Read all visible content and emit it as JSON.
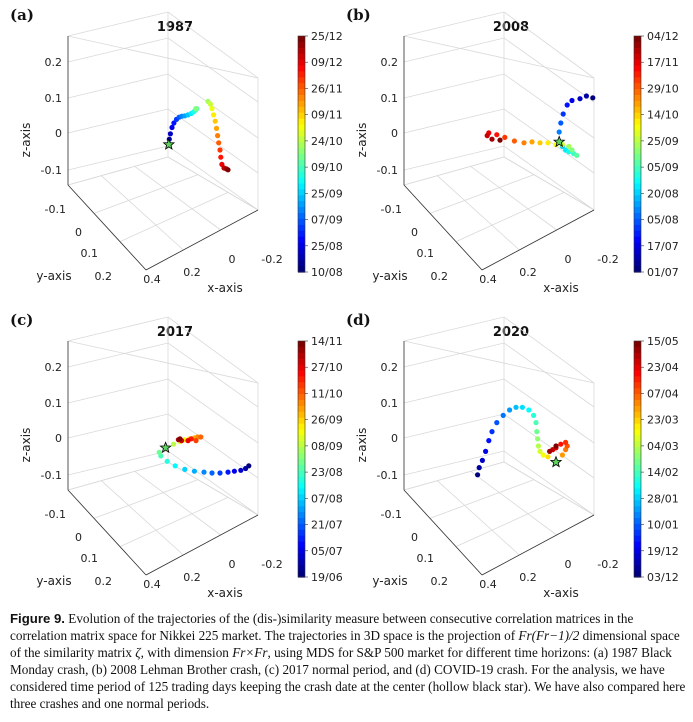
{
  "figure": {
    "label": "Figure 9.",
    "caption_parts": [
      "Evolution of the trajectories of the (dis-)similarity measure between consecutive correlation matrices in the correlation matrix space for Nikkei 225 market. The trajectories in 3D space is the projection of ",
      "Fr(Fr−1)/2",
      " dimensional space of the similarity matrix ",
      "ζ",
      ", with dimension ",
      "Fr×Fr",
      ", using MDS for S&P 500 market for different time horizons: (a) 1987 Black Monday crash, (b) 2008 Lehman Brother crash, (c) 2017 normal period, and (d) COVID-19 crash. For the analysis, we have considered time period of 125 trading days keeping the crash date at the center (hollow black star). We have also compared here three crashes and one normal periods."
    ]
  },
  "colors": {
    "jet": [
      "#00007f",
      "#0000ff",
      "#007fff",
      "#00ffff",
      "#7fff7f",
      "#ffff00",
      "#ff7f00",
      "#ff0000",
      "#7f0000"
    ],
    "star_fill": "#5fd35f",
    "axis": "#333333",
    "grid": "#d9d9d9"
  },
  "chart_data": [
    {
      "panel": "(a)",
      "title": "1987",
      "type": "scatter3d",
      "xlabel": "x-axis",
      "ylabel": "y-axis",
      "zlabel": "z-axis",
      "x_ticks": [
        "0.4",
        "0.2",
        "0",
        "-0.2"
      ],
      "y_ticks": [
        "-0.1",
        "0",
        "0.1",
        "0.2"
      ],
      "z_ticks": [
        "0.2",
        "0.1",
        "0",
        "-0.1"
      ],
      "colorbar_ticks": [
        "25/12",
        "09/12",
        "26/11",
        "09/11",
        "24/10",
        "09/10",
        "25/09",
        "07/09",
        "25/08",
        "10/08"
      ],
      "crash_index": 0,
      "trajectory": [
        [
          0.38,
          0.47
        ],
        [
          0.383,
          0.44
        ],
        [
          0.39,
          0.41
        ],
        [
          0.4,
          0.375
        ],
        [
          0.412,
          0.35
        ],
        [
          0.428,
          0.33
        ],
        [
          0.445,
          0.318
        ],
        [
          0.462,
          0.312
        ],
        [
          0.48,
          0.31
        ],
        [
          0.5,
          0.305
        ],
        [
          0.52,
          0.297
        ],
        [
          0.535,
          0.288
        ],
        [
          0.548,
          0.278
        ],
        [
          0.555,
          0.27
        ],
        [
          0.548,
          0.27
        ],
        [
          0.625,
          0.23
        ],
        [
          0.64,
          0.245
        ],
        [
          0.65,
          0.27
        ],
        [
          0.66,
          0.305
        ],
        [
          0.67,
          0.34
        ],
        [
          0.678,
          0.38
        ],
        [
          0.685,
          0.42
        ],
        [
          0.692,
          0.46
        ],
        [
          0.7,
          0.5
        ],
        [
          0.705,
          0.54
        ],
        [
          0.712,
          0.58
        ],
        [
          0.725,
          0.6
        ],
        [
          0.74,
          0.605
        ],
        [
          0.75,
          0.61
        ]
      ]
    },
    {
      "panel": "(b)",
      "title": "2008",
      "type": "scatter3d",
      "xlabel": "x-axis",
      "ylabel": "y-axis",
      "zlabel": "z-axis",
      "x_ticks": [
        "0.4",
        "0.2",
        "0",
        "-0.2"
      ],
      "y_ticks": [
        "-0.1",
        "0",
        "0.1",
        "0.2"
      ],
      "z_ticks": [
        "0.2",
        "0.1",
        "0",
        "-0.1"
      ],
      "colorbar_ticks": [
        "04/12",
        "17/11",
        "29/10",
        "14/10",
        "25/09",
        "05/09",
        "20/08",
        "05/08",
        "17/07",
        "01/07"
      ],
      "crash_index": 8,
      "trajectory": [
        [
          0.93,
          0.21
        ],
        [
          0.89,
          0.2
        ],
        [
          0.85,
          0.215
        ],
        [
          0.8,
          0.225
        ],
        [
          0.77,
          0.25
        ],
        [
          0.745,
          0.3
        ],
        [
          0.73,
          0.35
        ],
        [
          0.72,
          0.4
        ],
        [
          0.72,
          0.455
        ],
        [
          0.74,
          0.48
        ],
        [
          0.76,
          0.5
        ],
        [
          0.78,
          0.51
        ],
        [
          0.81,
          0.52
        ],
        [
          0.83,
          0.53
        ],
        [
          0.8,
          0.5
        ],
        [
          0.78,
          0.48
        ],
        [
          0.74,
          0.47
        ],
        [
          0.7,
          0.47
        ],
        [
          0.65,
          0.46
        ],
        [
          0.6,
          0.46
        ],
        [
          0.55,
          0.455
        ],
        [
          0.5,
          0.46
        ],
        [
          0.44,
          0.45
        ],
        [
          0.38,
          0.43
        ],
        [
          0.33,
          0.415
        ],
        [
          0.28,
          0.405
        ],
        [
          0.27,
          0.42
        ],
        [
          0.3,
          0.44
        ],
        [
          0.35,
          0.445
        ]
      ]
    },
    {
      "panel": "(c)",
      "title": "2017",
      "type": "scatter3d",
      "xlabel": "x-axis",
      "ylabel": "y-axis",
      "zlabel": "z-axis",
      "x_ticks": [
        "0.4",
        "0.2",
        "0",
        "-0.2"
      ],
      "y_ticks": [
        "-0.1",
        "0",
        "0.1",
        "0.2"
      ],
      "z_ticks": [
        "0.2",
        "0.1",
        "0",
        "-0.1"
      ],
      "colorbar_ticks": [
        "14/11",
        "27/10",
        "11/10",
        "26/09",
        "08/09",
        "23/08",
        "07/08",
        "21/07",
        "05/07",
        "19/06"
      ],
      "crash_index": 14,
      "trajectory": [
        [
          0.88,
          0.56
        ],
        [
          0.86,
          0.575
        ],
        [
          0.83,
          0.585
        ],
        [
          0.79,
          0.59
        ],
        [
          0.75,
          0.595
        ],
        [
          0.7,
          0.6
        ],
        [
          0.65,
          0.6
        ],
        [
          0.6,
          0.595
        ],
        [
          0.54,
          0.59
        ],
        [
          0.48,
          0.58
        ],
        [
          0.42,
          0.56
        ],
        [
          0.37,
          0.535
        ],
        [
          0.33,
          0.505
        ],
        [
          0.32,
          0.485
        ],
        [
          0.36,
          0.46
        ],
        [
          0.41,
          0.44
        ],
        [
          0.45,
          0.425
        ],
        [
          0.48,
          0.415
        ],
        [
          0.51,
          0.41
        ],
        [
          0.54,
          0.405
        ],
        [
          0.56,
          0.4
        ],
        [
          0.58,
          0.4
        ],
        [
          0.55,
          0.42
        ],
        [
          0.52,
          0.41
        ],
        [
          0.5,
          0.42
        ],
        [
          0.46,
          0.42
        ],
        [
          0.44,
          0.415
        ],
        [
          0.45,
          0.41
        ]
      ]
    },
    {
      "panel": "(d)",
      "title": "2020",
      "type": "scatter3d",
      "xlabel": "x-axis",
      "ylabel": "y-axis",
      "zlabel": "z-axis",
      "x_ticks": [
        "0.4",
        "0.2",
        "0",
        "-0.2"
      ],
      "y_ticks": [
        "-0.1",
        "0",
        "0.1",
        "0.2"
      ],
      "z_ticks": [
        "0.2",
        "0.1",
        "0",
        "-0.1"
      ],
      "colorbar_ticks": [
        "15/05",
        "23/04",
        "07/04",
        "23/03",
        "04/03",
        "14/02",
        "28/01",
        "10/01",
        "19/12",
        "03/12"
      ],
      "crash_index": 20,
      "trajectory": [
        [
          0.21,
          0.61
        ],
        [
          0.22,
          0.57
        ],
        [
          0.24,
          0.53
        ],
        [
          0.26,
          0.48
        ],
        [
          0.28,
          0.42
        ],
        [
          0.3,
          0.37
        ],
        [
          0.33,
          0.32
        ],
        [
          0.37,
          0.28
        ],
        [
          0.41,
          0.25
        ],
        [
          0.45,
          0.235
        ],
        [
          0.49,
          0.235
        ],
        [
          0.53,
          0.25
        ],
        [
          0.56,
          0.28
        ],
        [
          0.575,
          0.32
        ],
        [
          0.58,
          0.37
        ],
        [
          0.585,
          0.41
        ],
        [
          0.59,
          0.45
        ],
        [
          0.6,
          0.48
        ],
        [
          0.62,
          0.5
        ],
        [
          0.65,
          0.51
        ],
        [
          0.7,
          0.54
        ],
        [
          0.74,
          0.5
        ],
        [
          0.76,
          0.47
        ],
        [
          0.77,
          0.45
        ],
        [
          0.76,
          0.43
        ],
        [
          0.73,
          0.44
        ],
        [
          0.7,
          0.46
        ],
        [
          0.68,
          0.47
        ],
        [
          0.66,
          0.48
        ],
        [
          0.7,
          0.45
        ]
      ]
    }
  ]
}
